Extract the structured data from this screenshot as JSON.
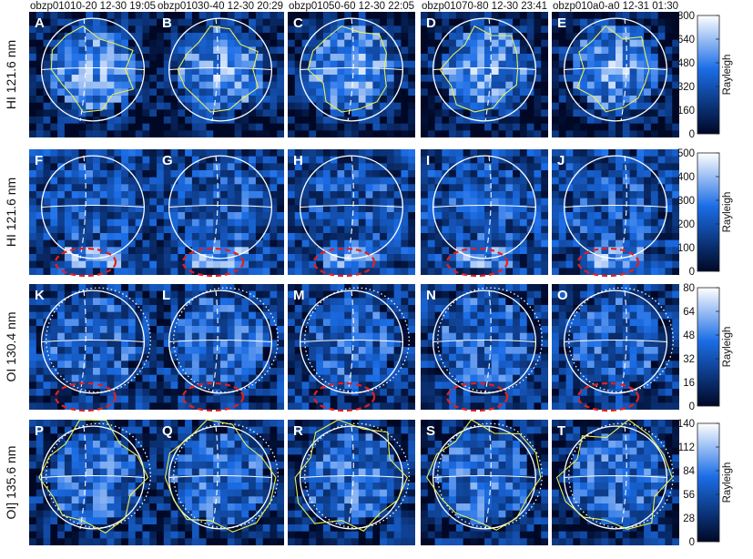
{
  "figure": {
    "columns": [
      "obzp01010-20 12-30 19:05",
      "obzp01030-40 12-30 20:29",
      "obzp01050-60 12-30 22:05",
      "obzp01070-80 12-30 23:41",
      "obzp010a0-a0 12-31 01:30"
    ],
    "rows": [
      {
        "label": "HI 121.6 nm",
        "letters": [
          "A",
          "B",
          "C",
          "D",
          "E"
        ],
        "colorbar": {
          "ticks": [
            0,
            160,
            320,
            480,
            640,
            800
          ],
          "max": 800,
          "unit": "Rayleigh"
        },
        "contours": true,
        "dotted_limb": false,
        "aurora_ellipse": false
      },
      {
        "label": "HI 121.6 nm",
        "letters": [
          "F",
          "G",
          "H",
          "I",
          "J"
        ],
        "colorbar": {
          "ticks": [
            0,
            100,
            200,
            300,
            400,
            500
          ],
          "max": 500,
          "unit": "Rayleigh"
        },
        "contours": false,
        "dotted_limb": false,
        "aurora_ellipse": true
      },
      {
        "label": "OI 130.4 nm",
        "letters": [
          "K",
          "L",
          "M",
          "N",
          "O"
        ],
        "colorbar": {
          "ticks": [
            0,
            16,
            32,
            48,
            64,
            80
          ],
          "max": 80,
          "unit": "Rayleigh"
        },
        "contours": false,
        "dotted_limb": true,
        "aurora_ellipse": true
      },
      {
        "label": "OI] 135.6 nm",
        "letters": [
          "P",
          "Q",
          "R",
          "S",
          "T"
        ],
        "colorbar": {
          "ticks": [
            0,
            28,
            56,
            84,
            112,
            140
          ],
          "max": 140,
          "unit": "Rayleigh"
        },
        "contours": true,
        "dotted_limb": true,
        "aurora_ellipse": false
      }
    ],
    "colors": {
      "map_low": "#000826",
      "map_mid": "#1b6de6",
      "map_high": "#ffffff",
      "contour": "#e8f05a",
      "limb": "#ffffff",
      "aurora_ellipse": "#e02020"
    }
  },
  "chart_data": {
    "type": "heatmap",
    "description_rows": [
      "HI 121.6 nm",
      "HI 121.6 nm",
      "OI 130.4 nm",
      "OI] 135.6 nm"
    ],
    "x": [
      "obzp01010-20 12-30 19:05",
      "obzp01030-40 12-30 20:29",
      "obzp01050-60 12-30 22:05",
      "obzp01070-80 12-30 23:41",
      "obzp010a0-a0 12-31 01:30"
    ],
    "colorbar_unit": "Rayleigh",
    "colorbar_ranges": [
      [
        0,
        800
      ],
      [
        0,
        500
      ],
      [
        0,
        80
      ],
      [
        0,
        140
      ]
    ]
  }
}
